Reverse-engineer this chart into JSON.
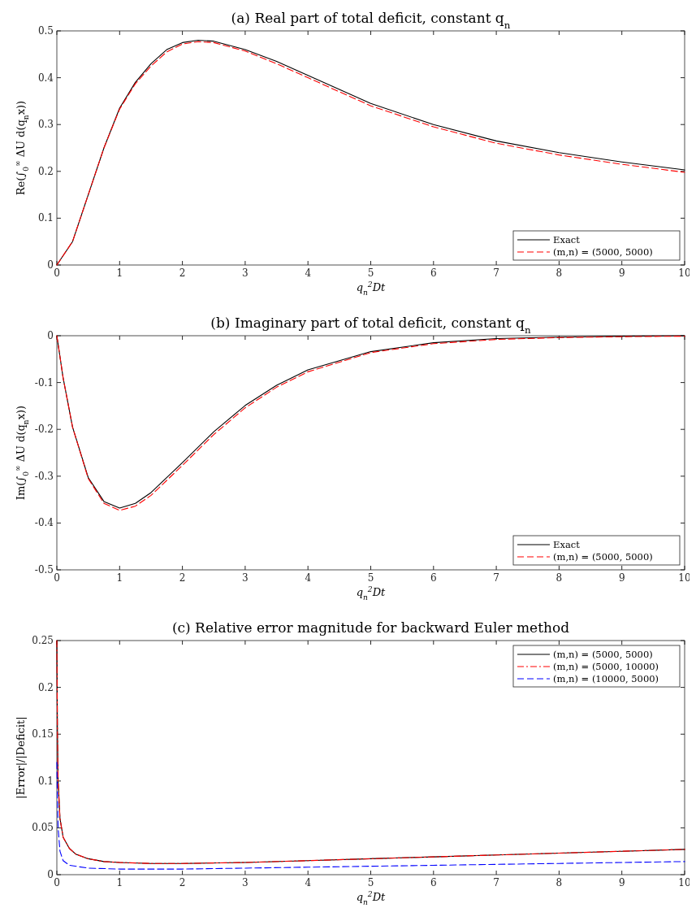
{
  "chart_data": [
    {
      "type": "line",
      "title": "(a) Real part of total deficit, constant q$_{n}$",
      "xlabel": "q$_{n}$$^{2}$Dt",
      "ylabel": "Re(∫$_{0}$$^{∞}$ ΔU d(q$_{n}$x))",
      "xlim": [
        0,
        10
      ],
      "xticks": [
        0,
        1,
        2,
        3,
        4,
        5,
        6,
        7,
        8,
        9,
        10
      ],
      "ylim": [
        0,
        0.5
      ],
      "yticks": [
        0,
        0.1,
        0.2,
        0.3,
        0.4,
        0.5
      ],
      "grid": false,
      "legend": "bottom right",
      "marker": "none",
      "series": [
        {
          "name": "Exact",
          "color": "#000000",
          "line_style": "solid",
          "x": [
            0,
            0.25,
            0.5,
            0.75,
            1,
            1.25,
            1.5,
            1.75,
            2,
            2.25,
            2.5,
            3,
            3.5,
            4,
            4.5,
            5,
            6,
            7,
            8,
            9,
            10
          ],
          "values": [
            0,
            0.05,
            0.15,
            0.25,
            0.335,
            0.39,
            0.43,
            0.46,
            0.475,
            0.48,
            0.478,
            0.46,
            0.435,
            0.405,
            0.375,
            0.345,
            0.3,
            0.265,
            0.24,
            0.22,
            0.203
          ]
        },
        {
          "name": "(m,n) = (5000, 5000)",
          "color": "#ff0000",
          "line_style": "dashed",
          "x": [
            0,
            0.25,
            0.5,
            0.75,
            1,
            1.25,
            1.5,
            1.75,
            2,
            2.25,
            2.5,
            3,
            3.5,
            4,
            4.5,
            5,
            6,
            7,
            8,
            9,
            10
          ],
          "values": [
            0,
            0.05,
            0.15,
            0.25,
            0.333,
            0.387,
            0.425,
            0.455,
            0.472,
            0.477,
            0.475,
            0.457,
            0.43,
            0.4,
            0.37,
            0.34,
            0.295,
            0.26,
            0.235,
            0.215,
            0.198
          ]
        }
      ]
    },
    {
      "type": "line",
      "title": "(b) Imaginary part of total deficit, constant q$_{n}$",
      "xlabel": "q$_{n}$$^{2}$Dt",
      "ylabel": "Im(∫$_{0}$$^{∞}$ ΔU d(q$_{n}$x))",
      "xlim": [
        0,
        10
      ],
      "xticks": [
        0,
        1,
        2,
        3,
        4,
        5,
        6,
        7,
        8,
        9,
        10
      ],
      "ylim": [
        -0.5,
        0
      ],
      "yticks": [
        -0.5,
        -0.4,
        -0.3,
        -0.2,
        -0.1,
        0
      ],
      "grid": false,
      "legend": "bottom right",
      "marker": "none",
      "series": [
        {
          "name": "Exact",
          "color": "#000000",
          "line_style": "solid",
          "x": [
            0,
            0.1,
            0.25,
            0.5,
            0.75,
            1,
            1.25,
            1.5,
            2,
            2.5,
            3,
            3.5,
            4,
            5,
            6,
            7,
            8,
            9,
            10
          ],
          "values": [
            0,
            -0.09,
            -0.195,
            -0.303,
            -0.354,
            -0.368,
            -0.358,
            -0.335,
            -0.271,
            -0.205,
            -0.149,
            -0.106,
            -0.073,
            -0.034,
            -0.015,
            -0.006,
            -0.003,
            -0.001,
            0
          ]
        },
        {
          "name": "(m,n) = (5000, 5000)",
          "color": "#ff0000",
          "line_style": "dashed",
          "x": [
            0,
            0.1,
            0.25,
            0.5,
            0.75,
            1,
            1.25,
            1.5,
            2,
            2.5,
            3,
            3.5,
            4,
            5,
            6,
            7,
            8,
            9,
            10
          ],
          "values": [
            0,
            -0.09,
            -0.195,
            -0.305,
            -0.358,
            -0.373,
            -0.364,
            -0.341,
            -0.277,
            -0.211,
            -0.154,
            -0.11,
            -0.077,
            -0.036,
            -0.017,
            -0.008,
            -0.004,
            -0.002,
            -0.001
          ]
        }
      ]
    },
    {
      "type": "line",
      "title": "(c) Relative error magnitude for backward Euler method",
      "xlabel": "q$_{n}$$^{2}$Dt",
      "ylabel": "|Error|/|Deficit|",
      "xlim": [
        0,
        10
      ],
      "xticks": [
        0,
        1,
        2,
        3,
        4,
        5,
        6,
        7,
        8,
        9,
        10
      ],
      "ylim": [
        0,
        0.25
      ],
      "yticks": [
        0,
        0.05,
        0.1,
        0.15,
        0.2,
        0.25
      ],
      "grid": false,
      "legend": "top right",
      "marker": "none",
      "series": [
        {
          "name": "(m,n) = (5000, 5000)",
          "color": "#000000",
          "line_style": "solid",
          "x": [
            0,
            0.01,
            0.02,
            0.05,
            0.1,
            0.2,
            0.3,
            0.5,
            0.75,
            1,
            1.5,
            2,
            3,
            4,
            5,
            6,
            7,
            8,
            9,
            10
          ],
          "values": [
            0.25,
            0.15,
            0.1,
            0.06,
            0.04,
            0.028,
            0.022,
            0.017,
            0.014,
            0.013,
            0.012,
            0.012,
            0.013,
            0.015,
            0.017,
            0.019,
            0.021,
            0.023,
            0.025,
            0.027
          ]
        },
        {
          "name": "(m,n) = (5000, 10000)",
          "color": "#ff0000",
          "line_style": "dashdot",
          "x": [
            0,
            0.01,
            0.02,
            0.05,
            0.1,
            0.2,
            0.3,
            0.5,
            0.75,
            1,
            1.5,
            2,
            3,
            4,
            5,
            6,
            7,
            8,
            9,
            10
          ],
          "values": [
            0.25,
            0.15,
            0.1,
            0.06,
            0.04,
            0.028,
            0.022,
            0.017,
            0.014,
            0.013,
            0.012,
            0.012,
            0.013,
            0.015,
            0.017,
            0.019,
            0.021,
            0.023,
            0.025,
            0.027
          ]
        },
        {
          "name": "(m,n) = (10000, 5000)",
          "color": "#0000ff",
          "line_style": "dashed",
          "x": [
            0,
            0.01,
            0.02,
            0.05,
            0.1,
            0.2,
            0.5,
            1,
            2,
            3,
            4,
            5,
            6,
            7,
            8,
            9,
            10
          ],
          "values": [
            0.12,
            0.08,
            0.05,
            0.025,
            0.015,
            0.01,
            0.007,
            0.006,
            0.006,
            0.007,
            0.008,
            0.009,
            0.01,
            0.011,
            0.012,
            0.013,
            0.014
          ]
        }
      ]
    }
  ]
}
